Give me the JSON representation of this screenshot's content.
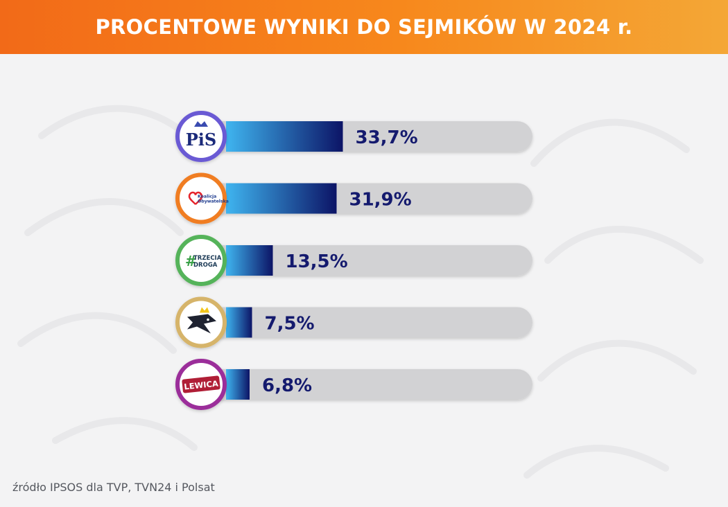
{
  "title": "PROCENTOWE WYNIKI DO SEJMIKÓW W 2024 r.",
  "source": "źródło IPSOS dla TVP, TVN24 i Polsat",
  "colors": {
    "header_start": "#f26a18",
    "header_end": "#f4a736",
    "bar_light": "#3fb5f0",
    "bar_dark": "#0c1466",
    "track": "#d2d2d4",
    "value_text": "#141a6e"
  },
  "chart_data": {
    "type": "bar",
    "orientation": "horizontal",
    "categories": [
      "PiS",
      "Koalicja Obywatelska",
      "Trzecia Droga",
      "Konfederacja",
      "Lewica"
    ],
    "values": [
      33.7,
      31.9,
      13.5,
      7.5,
      6.8
    ],
    "value_labels": [
      "33,7%",
      "31,9%",
      "13,5%",
      "7,5%",
      "6,8%"
    ],
    "unit": "%",
    "logos": [
      {
        "ring_color": "#6a5ad4",
        "lines": [
          "PiS"
        ],
        "text_color": "#1b2a7a"
      },
      {
        "ring_color": "#f07d22",
        "lines": [
          "Koalicja",
          "Obywatelska"
        ],
        "text_color": "#1f3c8f",
        "heart_color": "#e5232b"
      },
      {
        "ring_color": "#55b35a",
        "lines": [
          "#",
          "TRZECIA",
          "DROGA"
        ],
        "text_color": "#1c3a56",
        "hash_color": "#3aa047"
      },
      {
        "ring_color": "#d6b46a",
        "lines": [],
        "crown_color": "#f2c519"
      },
      {
        "ring_color": "#9b2f9a",
        "lines": [
          "LEWICA"
        ],
        "text_color": "#ffffff",
        "badge_color": "#b01e36"
      }
    ],
    "legend": "none",
    "grid": false
  }
}
